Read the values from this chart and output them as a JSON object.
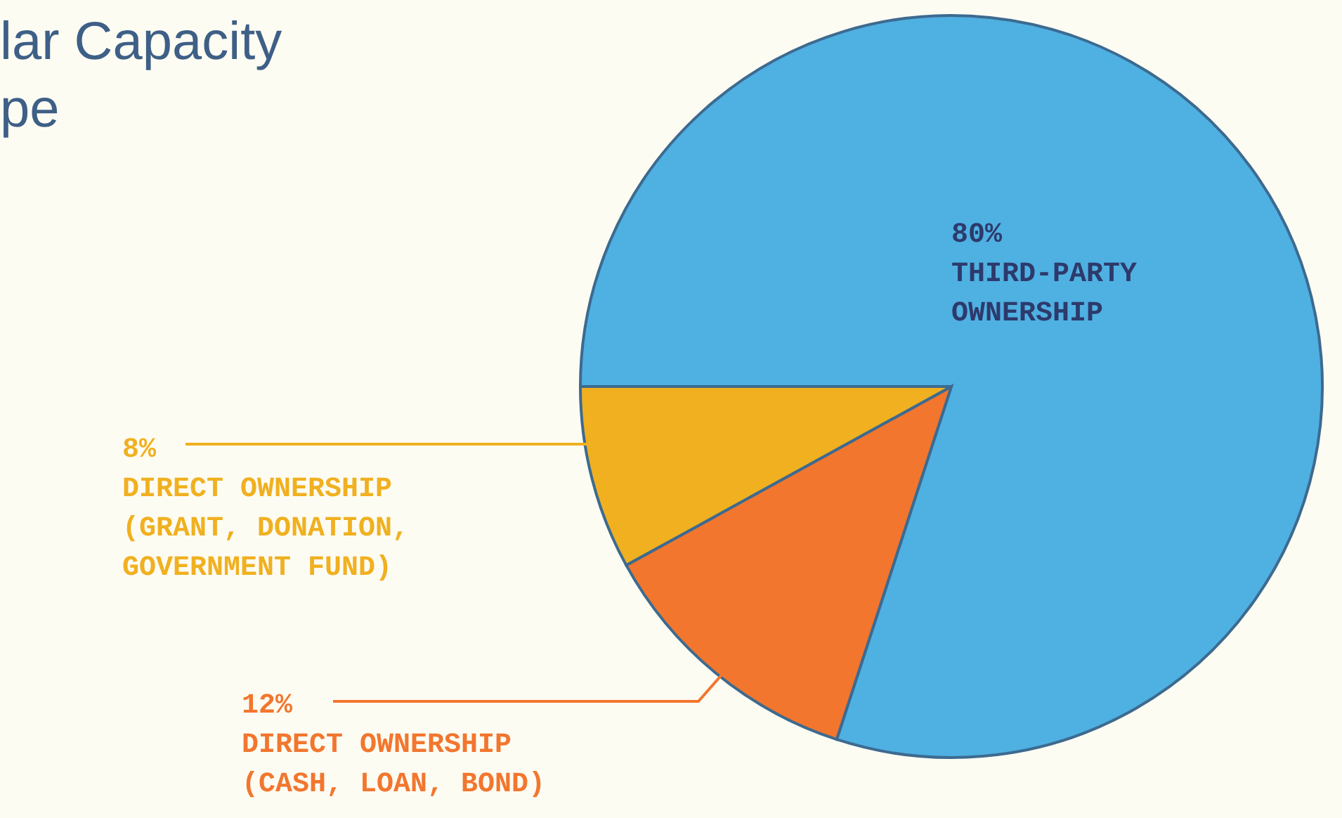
{
  "chart_data": {
    "type": "pie",
    "title": "lar Capacity\npe",
    "categories": [
      "THIRD-PARTY\nOWNERSHIP",
      "DIRECT OWNERSHIP\n(CASH, LOAN, BOND)",
      "DIRECT OWNERSHIP\n(GRANT, DONATION,\nGOVERNMENT FUND)"
    ],
    "values": [
      80,
      12,
      8
    ],
    "value_labels": [
      "80%",
      "12%",
      "8%"
    ],
    "colors": [
      "#4fb0e2",
      "#f2762e",
      "#f0b020"
    ]
  }
}
